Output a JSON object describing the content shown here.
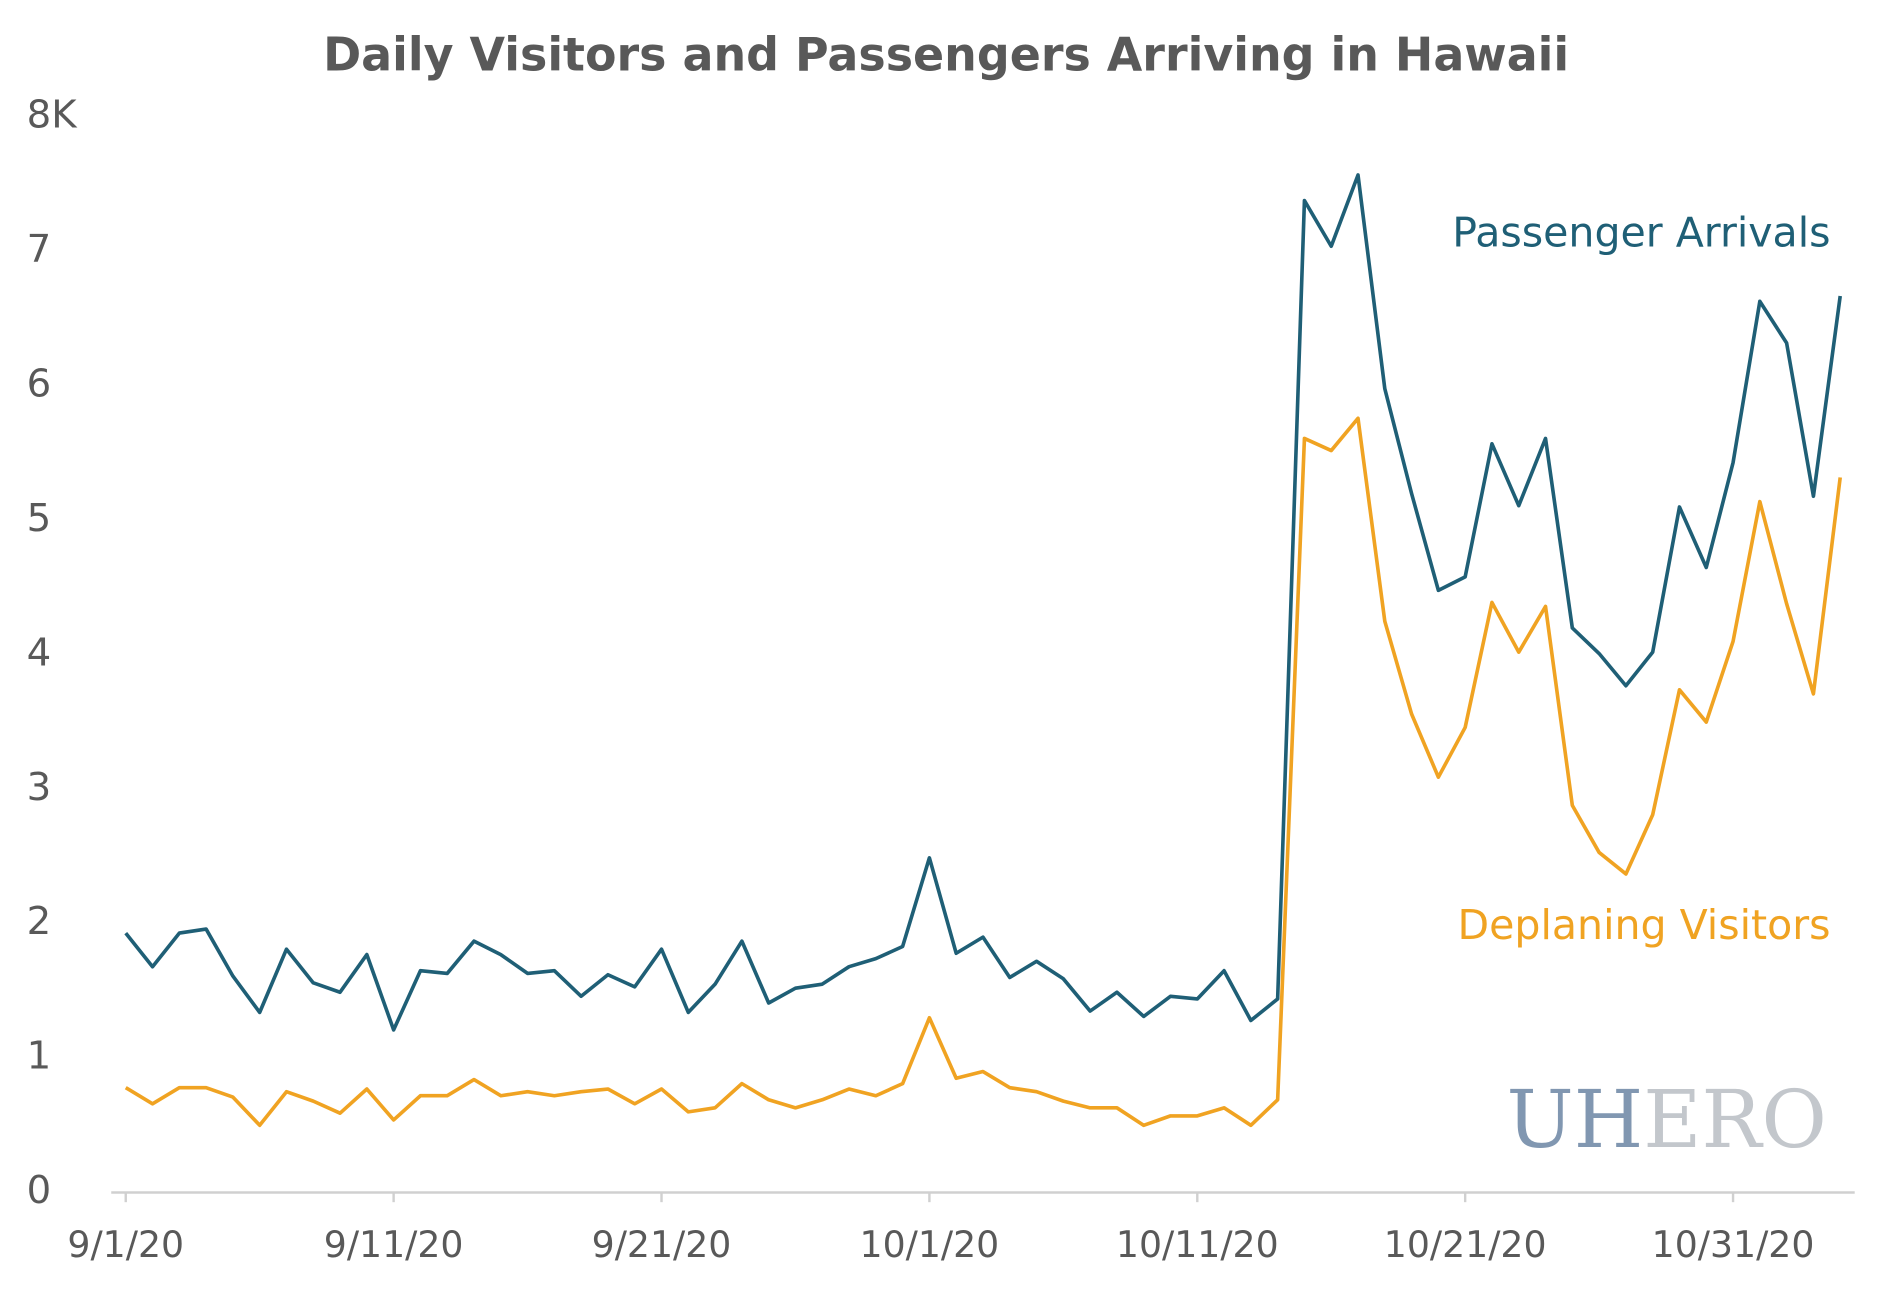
{
  "chart_data": {
    "type": "line",
    "title": "Daily Visitors and Passengers Arriving in Hawaii",
    "categories": [
      "9/1/20",
      null,
      null,
      null,
      null,
      null,
      null,
      null,
      null,
      null,
      "9/11/20",
      null,
      null,
      null,
      null,
      null,
      null,
      null,
      null,
      null,
      "9/21/20",
      null,
      null,
      null,
      null,
      null,
      null,
      null,
      null,
      null,
      "10/1/20",
      null,
      null,
      null,
      null,
      null,
      null,
      null,
      null,
      null,
      "10/11/20",
      null,
      null,
      null,
      null,
      null,
      null,
      null,
      null,
      null,
      "10/21/20",
      null,
      null,
      null,
      null,
      null,
      null,
      null,
      null,
      null,
      "10/31/20",
      null,
      null,
      null,
      null
    ],
    "series": [
      {
        "name": "Passenger Arrivals",
        "color": "#1f5f76",
        "values": [
          1.93,
          1.68,
          1.93,
          1.96,
          1.61,
          1.34,
          1.81,
          1.56,
          1.49,
          1.77,
          1.21,
          1.65,
          1.63,
          1.87,
          1.77,
          1.63,
          1.65,
          1.46,
          1.62,
          1.53,
          1.81,
          1.34,
          1.55,
          1.87,
          1.41,
          1.52,
          1.55,
          1.68,
          1.74,
          1.83,
          2.49,
          1.78,
          1.9,
          1.6,
          1.72,
          1.59,
          1.35,
          1.49,
          1.31,
          1.46,
          1.44,
          1.65,
          1.28,
          1.44,
          7.38,
          7.04,
          7.57,
          5.98,
          5.2,
          4.48,
          4.58,
          5.57,
          5.11,
          5.61,
          4.2,
          4.01,
          3.77,
          4.02,
          5.1,
          4.65,
          5.43,
          6.63,
          6.32,
          5.18,
          6.67
        ]
      },
      {
        "name": "Deplaning Visitors",
        "color": "#f0a322",
        "values": [
          0.78,
          0.66,
          0.78,
          0.78,
          0.71,
          0.5,
          0.75,
          0.68,
          0.59,
          0.77,
          0.54,
          0.72,
          0.72,
          0.84,
          0.72,
          0.75,
          0.72,
          0.75,
          0.77,
          0.66,
          0.77,
          0.6,
          0.63,
          0.81,
          0.69,
          0.63,
          0.69,
          0.77,
          0.72,
          0.81,
          1.3,
          0.85,
          0.9,
          0.78,
          0.75,
          0.68,
          0.63,
          0.63,
          0.5,
          0.57,
          0.57,
          0.63,
          0.5,
          0.69,
          5.61,
          5.52,
          5.76,
          4.25,
          3.56,
          3.09,
          3.46,
          4.39,
          4.02,
          4.36,
          2.88,
          2.53,
          2.37,
          2.81,
          3.74,
          3.5,
          4.1,
          5.14,
          4.38,
          3.71,
          5.32
        ]
      }
    ],
    "ylim": [
      0,
      8
    ],
    "yticks": [
      0,
      1,
      2,
      3,
      4,
      5,
      6,
      7,
      {
        "value": 8,
        "label": "8K"
      }
    ],
    "grid": false,
    "watermark": [
      "UH",
      "ERO"
    ]
  }
}
